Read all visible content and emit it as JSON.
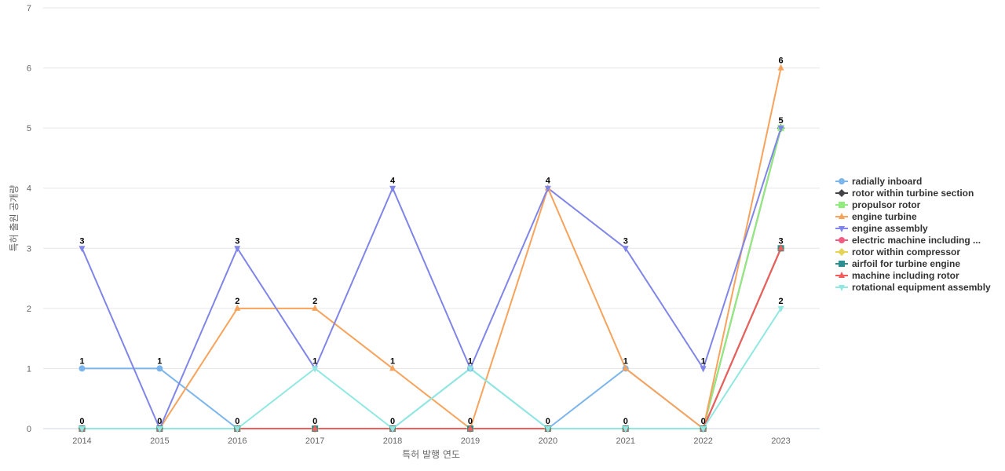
{
  "chart_data": {
    "type": "line",
    "title": "",
    "xlabel": "특허 발행 연도",
    "ylabel": "특허 출원 공개량",
    "x": [
      "2014",
      "2015",
      "2016",
      "2017",
      "2018",
      "2019",
      "2020",
      "2021",
      "2022",
      "2023"
    ],
    "ylim": [
      0,
      7
    ],
    "yticks": [
      0,
      1,
      2,
      3,
      4,
      5,
      6,
      7
    ],
    "grid": true,
    "legend_position": "right",
    "series": [
      {
        "name": "radially inboard",
        "color": "#7cb5ec",
        "marker": "circle",
        "values": [
          1,
          1,
          0,
          0,
          0,
          1,
          0,
          1,
          0,
          3
        ]
      },
      {
        "name": "rotor within turbine section",
        "color": "#434348",
        "marker": "diamond",
        "values": [
          0,
          0,
          0,
          0,
          0,
          0,
          0,
          0,
          0,
          5
        ]
      },
      {
        "name": "propulsor rotor",
        "color": "#90ed7d",
        "marker": "square",
        "values": [
          0,
          0,
          0,
          0,
          0,
          0,
          0,
          0,
          0,
          5
        ]
      },
      {
        "name": "engine turbine",
        "color": "#f7a35c",
        "marker": "triangle",
        "values": [
          0,
          0,
          2,
          2,
          1,
          0,
          4,
          1,
          0,
          6
        ]
      },
      {
        "name": "engine assembly",
        "color": "#8085e9",
        "marker": "triangle-down",
        "values": [
          3,
          0,
          3,
          1,
          4,
          1,
          4,
          3,
          1,
          5
        ]
      },
      {
        "name": "electric machine including ...",
        "color": "#f15c80",
        "marker": "circle",
        "values": [
          0,
          0,
          0,
          0,
          0,
          0,
          0,
          0,
          0,
          3
        ]
      },
      {
        "name": "rotor within compressor",
        "color": "#e4d354",
        "marker": "diamond",
        "values": [
          0,
          0,
          0,
          0,
          0,
          0,
          0,
          0,
          0,
          3
        ]
      },
      {
        "name": "airfoil for turbine engine",
        "color": "#2b908f",
        "marker": "square",
        "values": [
          0,
          0,
          0,
          0,
          0,
          0,
          0,
          0,
          0,
          3
        ]
      },
      {
        "name": "machine including rotor",
        "color": "#f45b5b",
        "marker": "triangle",
        "values": [
          0,
          0,
          0,
          0,
          0,
          0,
          0,
          0,
          0,
          3
        ]
      },
      {
        "name": "rotational equipment assembly",
        "color": "#91e8e1",
        "marker": "triangle-down",
        "values": [
          0,
          0,
          0,
          1,
          0,
          1,
          0,
          0,
          0,
          2
        ]
      }
    ],
    "data_labels": [
      {
        "x": "2014",
        "values": [
          "3",
          "1",
          "0"
        ]
      },
      {
        "x": "2015",
        "values": [
          "1",
          "0"
        ]
      },
      {
        "x": "2016",
        "values": [
          "3",
          "2",
          "0"
        ]
      },
      {
        "x": "2017",
        "values": [
          "2",
          "1",
          "0"
        ]
      },
      {
        "x": "2018",
        "values": [
          "4",
          "1",
          "0"
        ]
      },
      {
        "x": "2019",
        "values": [
          "1",
          "0"
        ]
      },
      {
        "x": "2020",
        "values": [
          "4",
          "0"
        ]
      },
      {
        "x": "2021",
        "values": [
          "3",
          "1",
          "0"
        ]
      },
      {
        "x": "2022",
        "values": [
          "1",
          "0"
        ]
      },
      {
        "x": "2023",
        "values": [
          "6",
          "5",
          "3",
          "2"
        ]
      }
    ]
  }
}
